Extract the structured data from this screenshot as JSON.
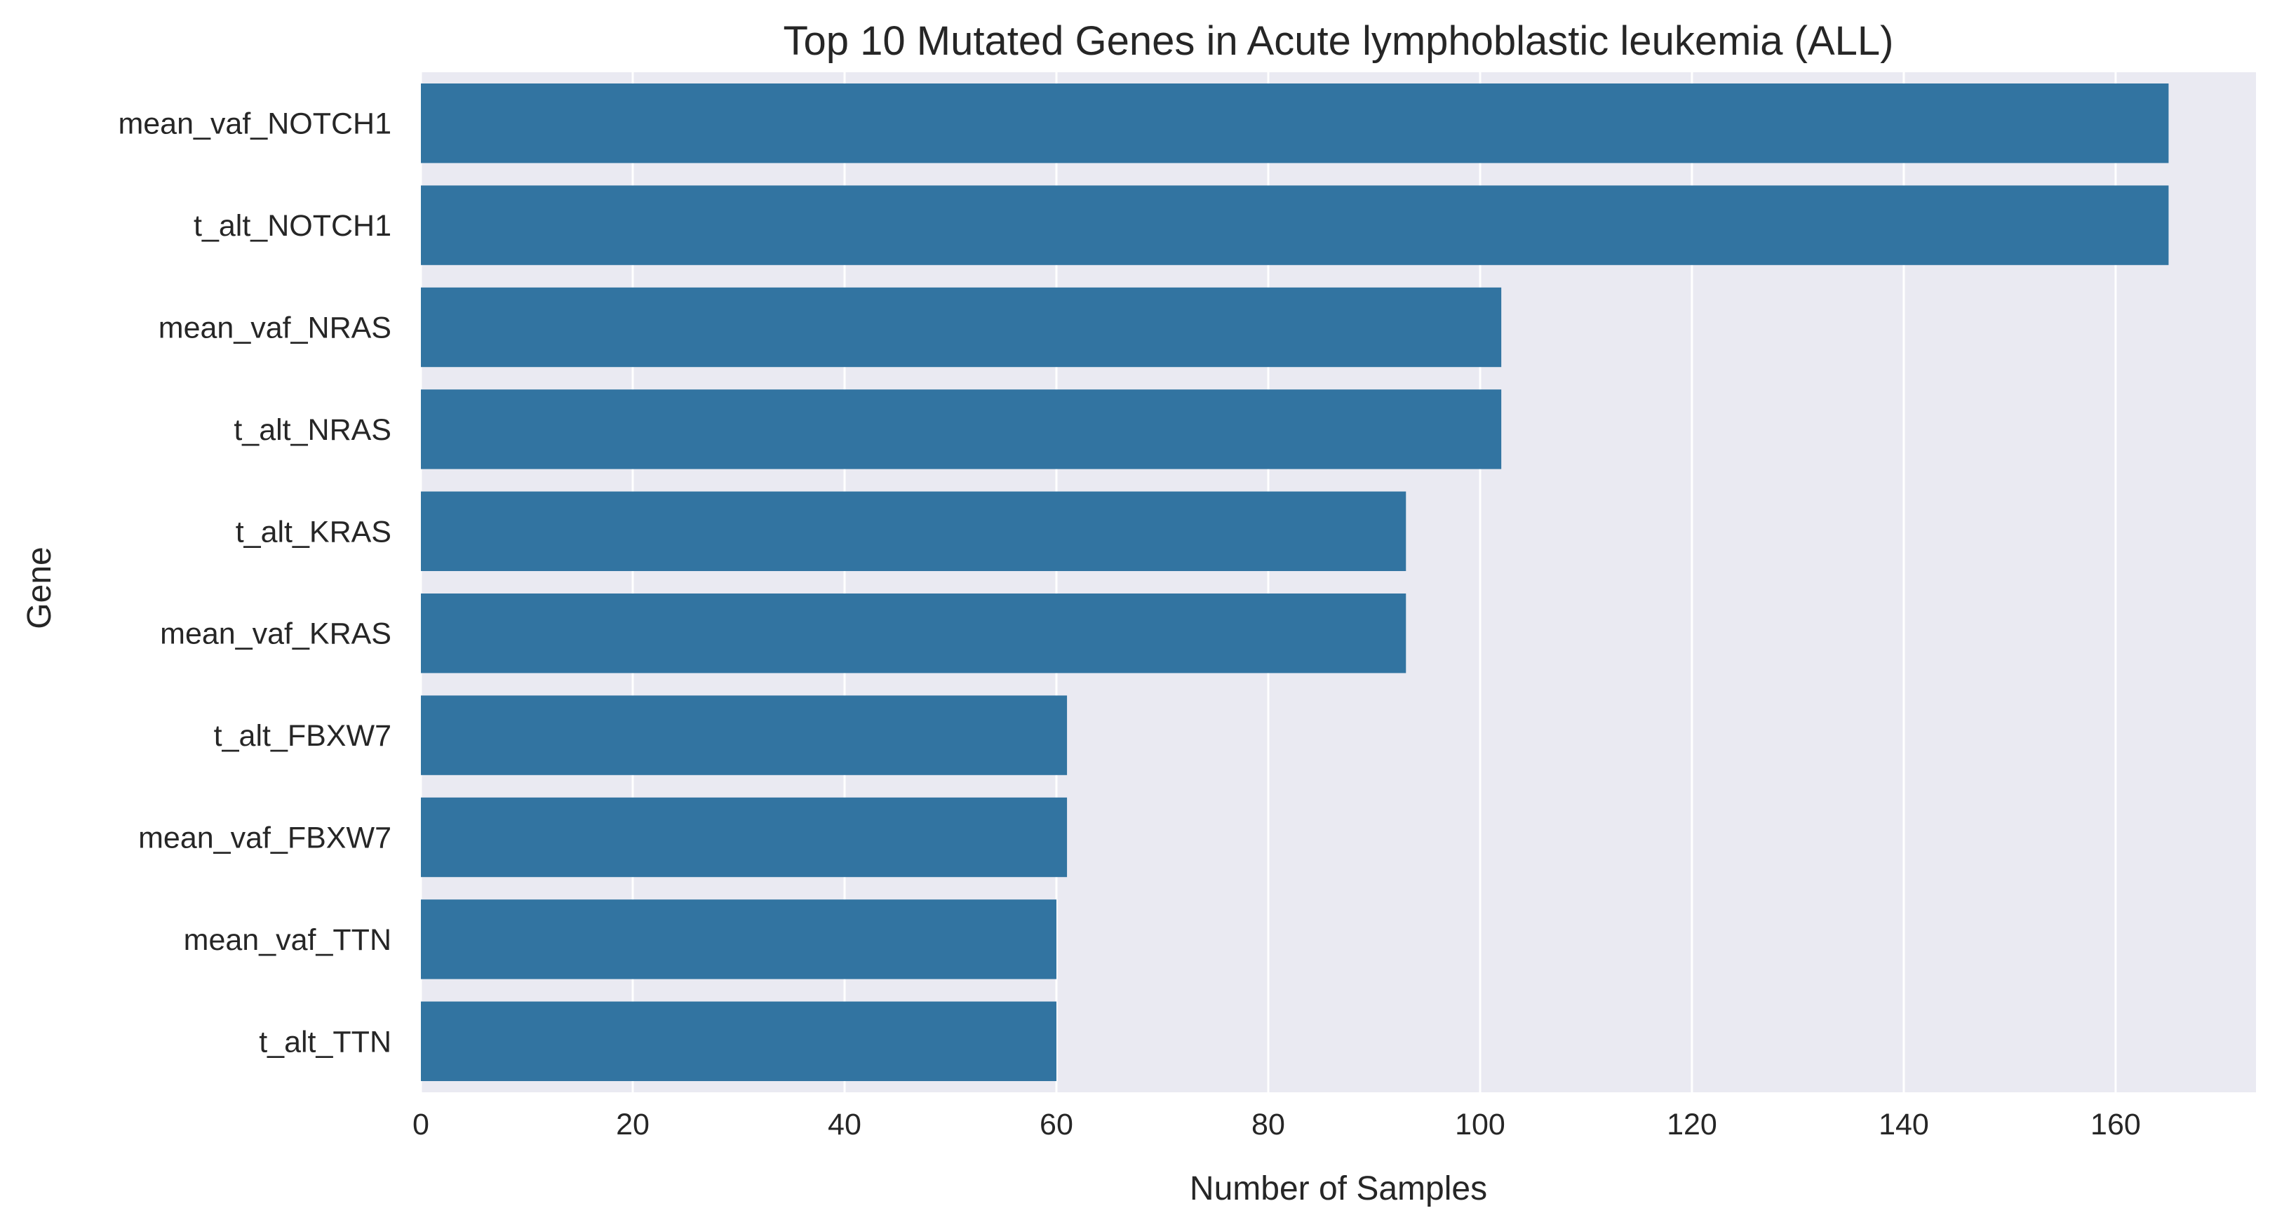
{
  "chart_data": {
    "type": "bar",
    "orientation": "horizontal",
    "title": "Top 10 Mutated Genes in Acute lymphoblastic leukemia (ALL)",
    "xlabel": "Number of Samples",
    "ylabel": "Gene",
    "categories": [
      "mean_vaf_NOTCH1",
      "t_alt_NOTCH1",
      "mean_vaf_NRAS",
      "t_alt_NRAS",
      "t_alt_KRAS",
      "mean_vaf_KRAS",
      "t_alt_FBXW7",
      "mean_vaf_FBXW7",
      "mean_vaf_TTN",
      "t_alt_TTN"
    ],
    "values": [
      165,
      165,
      102,
      102,
      93,
      93,
      61,
      61,
      60,
      60
    ],
    "xlim": [
      0,
      173.25
    ],
    "xticks": [
      0,
      20,
      40,
      60,
      80,
      100,
      120,
      140,
      160
    ],
    "grid": true,
    "legend": "none",
    "colors": {
      "bar": "#3274a1",
      "plot_background": "#eaeaf2",
      "grid": "#ffffff",
      "text": "#262626"
    }
  }
}
